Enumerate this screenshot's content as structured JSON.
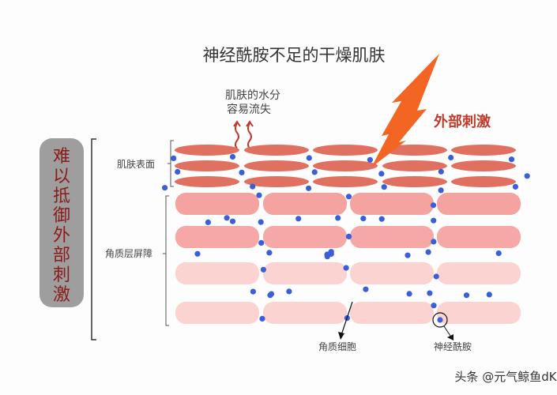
{
  "title": "神经酰胺不足的干燥肌肤",
  "water_loss_label": [
    "肌肤的水分",
    "容易流失"
  ],
  "external_stimulus_label": "外部刺激",
  "side_label": "难以抵御外部刺激",
  "skin_surface_label": "肌肤表面",
  "stratum_corneum_label": "角质层屏障",
  "corneocyte_label": "角质细胞",
  "ceramide_label": "神经酰胺",
  "watermark": "头条 @元气鲸鱼dK",
  "colors": {
    "surface_cell": "#e0705f",
    "corneocyte_top": "#f4a3a0",
    "corneocyte_bottom": "#fbd3d0",
    "ceramide_dot": "#3a5fd8",
    "lightning": "#f26522",
    "stimulus_text": "#c0392b",
    "side_box": "#9e9e9e",
    "side_text": "#8b1a1a"
  }
}
